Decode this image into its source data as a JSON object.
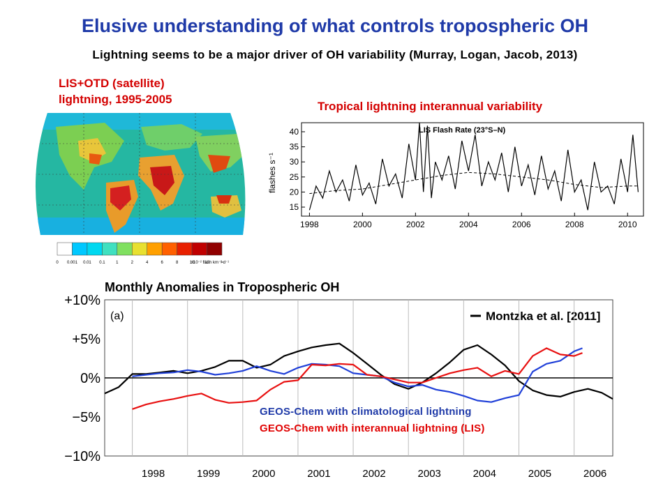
{
  "slide": {
    "title": "Elusive understanding of what controls tropospheric OH",
    "subtitle": "Lightning seems to be a major driver of OH variability (Murray, Logan, Jacob,  2013)"
  },
  "map": {
    "title_line1": "LIS+OTD (satellite)",
    "title_line2": "lightning, 1995-2005",
    "colorbar": {
      "ticks": [
        "0",
        "0.001",
        "0.01",
        "0.1",
        "1",
        "2",
        "4",
        "6",
        "8",
        "10",
        "12",
        ">"
      ],
      "unit": "x10⁻² flash km⁻² d⁻¹",
      "colors": [
        "#ffffff",
        "#00c8ff",
        "#00d8f0",
        "#40e0c0",
        "#80e060",
        "#e8e030",
        "#ffa000",
        "#ff6000",
        "#e82000",
        "#c00000",
        "#900000"
      ]
    }
  },
  "timeseries": {
    "heading": "Tropical lightning interannual variability",
    "chart_data": {
      "type": "line",
      "title": "LIS Flash Rate (23°S–N)",
      "ylabel": "flashes s⁻¹",
      "xlabel": "",
      "xlim": [
        1997.7,
        2010.6
      ],
      "ylim": [
        12,
        43
      ],
      "yticks": [
        15,
        20,
        25,
        30,
        35,
        40
      ],
      "xticks": [
        1998,
        2000,
        2002,
        2004,
        2006,
        2008,
        2010
      ],
      "series": [
        {
          "role": "monthly",
          "x": [
            1998.0,
            1998.25,
            1998.5,
            1998.75,
            1999.0,
            1999.25,
            1999.5,
            1999.75,
            2000.0,
            2000.25,
            2000.5,
            2000.75,
            2001.0,
            2001.25,
            2001.5,
            2001.75,
            2002.0,
            2002.15,
            2002.3,
            2002.45,
            2002.6,
            2002.75,
            2003.0,
            2003.25,
            2003.5,
            2003.75,
            2004.0,
            2004.25,
            2004.5,
            2004.75,
            2005.0,
            2005.25,
            2005.5,
            2005.75,
            2006.0,
            2006.25,
            2006.5,
            2006.75,
            2007.0,
            2007.25,
            2007.5,
            2007.75,
            2008.0,
            2008.25,
            2008.5,
            2008.75,
            2009.0,
            2009.25,
            2009.5,
            2009.75,
            2010.0,
            2010.2,
            2010.4
          ],
          "y": [
            14,
            22,
            18,
            27,
            20,
            24,
            17,
            29,
            19,
            23,
            16,
            31,
            22,
            26,
            18,
            36,
            24,
            43,
            20,
            42,
            18,
            30,
            24,
            32,
            21,
            37,
            27,
            39,
            22,
            30,
            24,
            33,
            20,
            35,
            22,
            29,
            19,
            32,
            21,
            27,
            17,
            34,
            20,
            24,
            14,
            30,
            20,
            22,
            16,
            31,
            20,
            39,
            20
          ]
        },
        {
          "role": "smoothed (dashed)",
          "x": [
            1998.0,
            1999.0,
            2000.0,
            2001.0,
            2002.0,
            2003.0,
            2004.0,
            2005.0,
            2006.0,
            2007.0,
            2008.0,
            2009.0,
            2010.0,
            2010.4
          ],
          "y": [
            19.5,
            20.5,
            21,
            22.5,
            24,
            25.5,
            26.5,
            26,
            25,
            24,
            22.5,
            21.5,
            22,
            22
          ]
        }
      ]
    }
  },
  "oh_chart": {
    "chart_data": {
      "type": "line",
      "title": "Monthly Anomalies in Tropospheric OH",
      "panel_label": "(a)",
      "ylabel": "",
      "xlabel": "",
      "xlim": [
        1997.5,
        2006.7
      ],
      "ylim": [
        -10,
        10
      ],
      "yticks": [
        "+10%",
        "+5%",
        "0%",
        "−5%",
        "−10%"
      ],
      "ytick_values": [
        10,
        5,
        0,
        -5,
        -10
      ],
      "xticks": [
        "1998",
        "1999",
        "2000",
        "2001",
        "2002",
        "2003",
        "2004",
        "2005",
        "2006"
      ],
      "xtick_values": [
        1998,
        1999,
        2000,
        2001,
        2002,
        2003,
        2004,
        2005,
        2006
      ],
      "series": [
        {
          "name": "Montzka et al. [2011]",
          "color": "#000000",
          "x": [
            1997.5,
            1997.75,
            1998.0,
            1998.25,
            1998.5,
            1998.75,
            1999.0,
            1999.25,
            1999.5,
            1999.75,
            2000.0,
            2000.25,
            2000.5,
            2000.75,
            2001.0,
            2001.25,
            2001.5,
            2001.75,
            2002.0,
            2002.25,
            2002.5,
            2002.75,
            2003.0,
            2003.25,
            2003.5,
            2003.75,
            2004.0,
            2004.25,
            2004.5,
            2004.75,
            2005.0,
            2005.25,
            2005.5,
            2005.75,
            2006.0,
            2006.25,
            2006.5,
            2006.7
          ],
          "y": [
            -2,
            -1.2,
            0.5,
            0.5,
            0.7,
            0.9,
            0.6,
            0.9,
            1.4,
            2.2,
            2.2,
            1.3,
            1.7,
            2.8,
            3.4,
            3.9,
            4.2,
            4.4,
            3.2,
            1.8,
            0.4,
            -0.8,
            -1.4,
            -0.6,
            0.6,
            2.0,
            3.6,
            4.2,
            3.0,
            1.6,
            -0.4,
            -1.6,
            -2.2,
            -2.4,
            -1.8,
            -1.4,
            -1.9,
            -2.7
          ]
        },
        {
          "name": "GEOS-Chem with climatological lightning",
          "color": "#1f3fd8",
          "x": [
            1998.0,
            1998.25,
            1998.5,
            1998.75,
            1999.0,
            1999.25,
            1999.5,
            1999.75,
            2000.0,
            2000.25,
            2000.5,
            2000.75,
            2001.0,
            2001.25,
            2001.5,
            2001.75,
            2002.0,
            2002.25,
            2002.5,
            2002.75,
            2003.0,
            2003.25,
            2003.5,
            2003.75,
            2004.0,
            2004.25,
            2004.5,
            2004.75,
            2005.0,
            2005.25,
            2005.5,
            2005.75,
            2006.0,
            2006.15
          ],
          "y": [
            0.2,
            0.4,
            0.6,
            0.7,
            1.0,
            0.8,
            0.4,
            0.6,
            0.9,
            1.5,
            0.9,
            0.5,
            1.3,
            1.8,
            1.7,
            1.5,
            0.6,
            0.4,
            0.2,
            -0.6,
            -1.1,
            -0.9,
            -1.5,
            -1.8,
            -2.3,
            -2.9,
            -3.1,
            -2.6,
            -2.2,
            0.8,
            1.8,
            2.2,
            3.4,
            3.8
          ]
        },
        {
          "name": "GEOS-Chem with interannual lightning  (LIS)",
          "color": "#e81010",
          "x": [
            1998.0,
            1998.25,
            1998.5,
            1998.75,
            1999.0,
            1999.25,
            1999.5,
            1999.75,
            2000.0,
            2000.25,
            2000.5,
            2000.75,
            2001.0,
            2001.25,
            2001.5,
            2001.75,
            2002.0,
            2002.25,
            2002.5,
            2002.75,
            2003.0,
            2003.25,
            2003.5,
            2003.75,
            2004.0,
            2004.25,
            2004.5,
            2004.75,
            2005.0,
            2005.25,
            2005.5,
            2005.75,
            2006.0,
            2006.15
          ],
          "y": [
            -4,
            -3.4,
            -3.0,
            -2.7,
            -2.3,
            -2.0,
            -2.8,
            -3.2,
            -3.1,
            -2.9,
            -1.5,
            -0.5,
            -0.3,
            1.7,
            1.6,
            1.8,
            1.7,
            0.4,
            0.2,
            -0.2,
            -0.6,
            -0.6,
            0.0,
            0.6,
            1.0,
            1.3,
            0.2,
            0.9,
            0.5,
            2.8,
            3.8,
            3.0,
            2.8,
            3.2
          ]
        }
      ]
    },
    "legend_clim": "GEOS-Chem with climatological lightning",
    "legend_inter": "GEOS-Chem with interannual lightning  (LIS)"
  }
}
